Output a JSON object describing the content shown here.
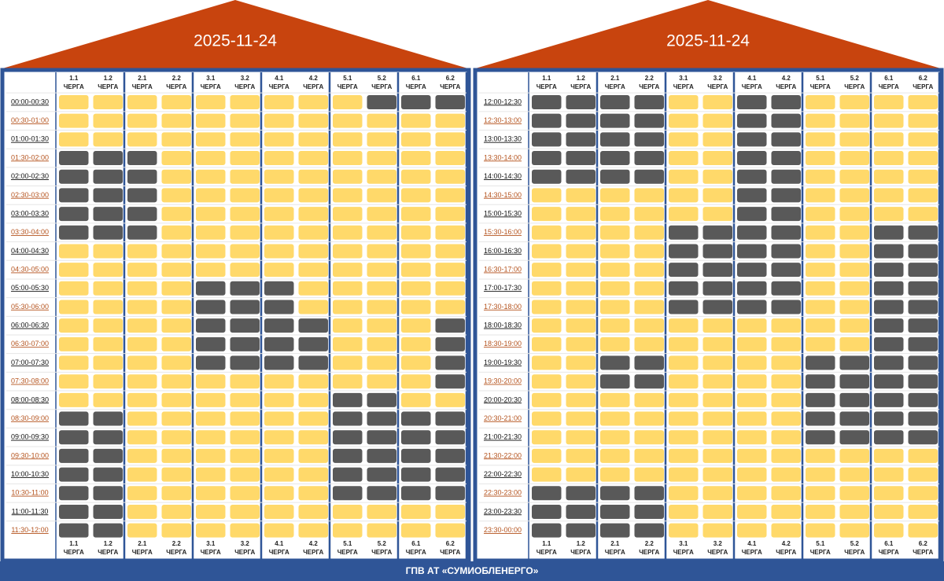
{
  "panels": [
    {
      "title": "2025-11-24",
      "times": [
        "00:00-00:30",
        "00:30-01:00",
        "01:00-01:30",
        "01:30-02:00",
        "02:00-02:30",
        "02:30-03:00",
        "03:00-03:30",
        "03:30-04:00",
        "04:00-04:30",
        "04:30-05:00",
        "05:00-05:30",
        "05:30-06:00",
        "06:00-06:30",
        "06:30-07:00",
        "07:00-07:30",
        "07:30-08:00",
        "08:00-08:30",
        "08:30-09:00",
        "09:00-09:30",
        "09:30-10:00",
        "10:00-10:30",
        "10:30-11:00",
        "11:00-11:30",
        "11:30-12:00"
      ],
      "outages": [
        [
          0,
          0,
          0,
          0,
          0,
          0,
          0,
          0,
          0,
          1,
          1,
          1
        ],
        [
          0,
          0,
          0,
          0,
          0,
          0,
          0,
          0,
          0,
          0,
          0,
          0
        ],
        [
          0,
          0,
          0,
          0,
          0,
          0,
          0,
          0,
          0,
          0,
          0,
          0
        ],
        [
          1,
          1,
          1,
          0,
          0,
          0,
          0,
          0,
          0,
          0,
          0,
          0
        ],
        [
          1,
          1,
          1,
          0,
          0,
          0,
          0,
          0,
          0,
          0,
          0,
          0
        ],
        [
          1,
          1,
          1,
          0,
          0,
          0,
          0,
          0,
          0,
          0,
          0,
          0
        ],
        [
          1,
          1,
          1,
          0,
          0,
          0,
          0,
          0,
          0,
          0,
          0,
          0
        ],
        [
          1,
          1,
          1,
          0,
          0,
          0,
          0,
          0,
          0,
          0,
          0,
          0
        ],
        [
          0,
          0,
          0,
          0,
          0,
          0,
          0,
          0,
          0,
          0,
          0,
          0
        ],
        [
          0,
          0,
          0,
          0,
          0,
          0,
          0,
          0,
          0,
          0,
          0,
          0
        ],
        [
          0,
          0,
          0,
          0,
          1,
          1,
          1,
          0,
          0,
          0,
          0,
          0
        ],
        [
          0,
          0,
          0,
          0,
          1,
          1,
          1,
          0,
          0,
          0,
          0,
          0
        ],
        [
          0,
          0,
          0,
          0,
          1,
          1,
          1,
          1,
          0,
          0,
          0,
          1
        ],
        [
          0,
          0,
          0,
          0,
          1,
          1,
          1,
          1,
          0,
          0,
          0,
          1
        ],
        [
          0,
          0,
          0,
          0,
          1,
          1,
          1,
          1,
          0,
          0,
          0,
          1
        ],
        [
          0,
          0,
          0,
          0,
          0,
          0,
          0,
          0,
          0,
          0,
          0,
          1
        ],
        [
          0,
          0,
          0,
          0,
          0,
          0,
          0,
          0,
          1,
          1,
          0,
          0
        ],
        [
          1,
          1,
          0,
          0,
          0,
          0,
          0,
          0,
          1,
          1,
          1,
          1
        ],
        [
          1,
          1,
          0,
          0,
          0,
          0,
          0,
          0,
          1,
          1,
          1,
          1
        ],
        [
          1,
          1,
          0,
          0,
          0,
          0,
          0,
          0,
          1,
          1,
          1,
          1
        ],
        [
          1,
          1,
          0,
          0,
          0,
          0,
          0,
          0,
          1,
          1,
          1,
          1
        ],
        [
          1,
          1,
          0,
          0,
          0,
          0,
          0,
          0,
          1,
          1,
          1,
          1
        ],
        [
          1,
          1,
          0,
          0,
          0,
          0,
          0,
          0,
          0,
          0,
          0,
          0
        ],
        [
          1,
          1,
          0,
          0,
          0,
          0,
          0,
          0,
          0,
          0,
          0,
          0
        ]
      ]
    },
    {
      "title": "2025-11-24",
      "times": [
        "12:00-12:30",
        "12:30-13:00",
        "13:00-13:30",
        "13:30-14:00",
        "14:00-14:30",
        "14:30-15:00",
        "15:00-15:30",
        "15:30-16:00",
        "16:00-16:30",
        "16:30-17:00",
        "17:00-17:30",
        "17:30-18:00",
        "18:00-18:30",
        "18:30-19:00",
        "19:00-19:30",
        "19:30-20:00",
        "20:00-20:30",
        "20:30-21:00",
        "21:00-21:30",
        "21:30-22:00",
        "22:00-22:30",
        "22:30-23:00",
        "23:00-23:30",
        "23:30-00:00"
      ],
      "outages": [
        [
          1,
          1,
          1,
          1,
          0,
          0,
          1,
          1,
          0,
          0,
          0,
          0
        ],
        [
          1,
          1,
          1,
          1,
          0,
          0,
          1,
          1,
          0,
          0,
          0,
          0
        ],
        [
          1,
          1,
          1,
          1,
          0,
          0,
          1,
          1,
          0,
          0,
          0,
          0
        ],
        [
          1,
          1,
          1,
          1,
          0,
          0,
          1,
          1,
          0,
          0,
          0,
          0
        ],
        [
          1,
          1,
          1,
          1,
          0,
          0,
          1,
          1,
          0,
          0,
          0,
          0
        ],
        [
          0,
          0,
          0,
          0,
          0,
          0,
          1,
          1,
          0,
          0,
          0,
          0
        ],
        [
          0,
          0,
          0,
          0,
          0,
          0,
          1,
          1,
          0,
          0,
          0,
          0
        ],
        [
          0,
          0,
          0,
          0,
          1,
          1,
          1,
          1,
          0,
          0,
          1,
          1
        ],
        [
          0,
          0,
          0,
          0,
          1,
          1,
          1,
          1,
          0,
          0,
          1,
          1
        ],
        [
          0,
          0,
          0,
          0,
          1,
          1,
          1,
          1,
          0,
          0,
          1,
          1
        ],
        [
          0,
          0,
          0,
          0,
          1,
          1,
          1,
          1,
          0,
          0,
          1,
          1
        ],
        [
          0,
          0,
          0,
          0,
          1,
          1,
          1,
          1,
          0,
          0,
          1,
          1
        ],
        [
          0,
          0,
          0,
          0,
          0,
          0,
          0,
          0,
          0,
          0,
          1,
          1
        ],
        [
          0,
          0,
          0,
          0,
          0,
          0,
          0,
          0,
          0,
          0,
          1,
          1
        ],
        [
          0,
          0,
          1,
          1,
          0,
          0,
          0,
          0,
          1,
          1,
          1,
          1
        ],
        [
          0,
          0,
          1,
          1,
          0,
          0,
          0,
          0,
          1,
          1,
          1,
          1
        ],
        [
          0,
          0,
          0,
          0,
          0,
          0,
          0,
          0,
          1,
          1,
          1,
          1
        ],
        [
          0,
          0,
          0,
          0,
          0,
          0,
          0,
          0,
          1,
          1,
          1,
          1
        ],
        [
          0,
          0,
          0,
          0,
          0,
          0,
          0,
          0,
          1,
          1,
          1,
          1
        ],
        [
          0,
          0,
          0,
          0,
          0,
          0,
          0,
          0,
          0,
          0,
          0,
          0
        ],
        [
          0,
          0,
          0,
          0,
          0,
          0,
          0,
          0,
          0,
          0,
          0,
          0
        ],
        [
          1,
          1,
          1,
          1,
          0,
          0,
          0,
          0,
          0,
          0,
          0,
          0
        ],
        [
          1,
          1,
          1,
          1,
          0,
          0,
          0,
          0,
          0,
          0,
          0,
          0
        ],
        [
          1,
          1,
          1,
          1,
          0,
          0,
          0,
          0,
          0,
          0,
          0,
          0
        ]
      ]
    }
  ],
  "queues": [
    "1.1",
    "1.2",
    "2.1",
    "2.2",
    "3.1",
    "3.2",
    "4.1",
    "4.2",
    "5.1",
    "5.2",
    "6.1",
    "6.2"
  ],
  "queue_word": "ЧЕРГА",
  "footer": "ГПВ АТ «СУМИОБЛЕНЕРГО»"
}
